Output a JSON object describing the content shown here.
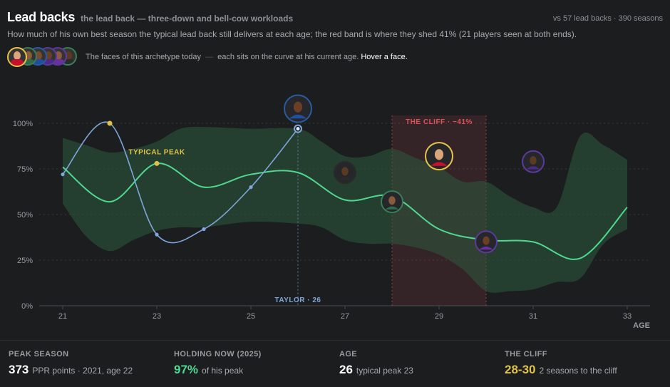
{
  "header": {
    "title": "Lead backs",
    "subtitle": "the lead back — three-down and bell-cow workloads",
    "meta": "vs 57 lead backs · 390 seasons",
    "description": "How much of his own best season the typical lead back still delivers at each age; the red band is where they shed 41% (21 players seen at both ends)."
  },
  "faces": {
    "caption": "The faces of this archetype today",
    "caption_sep": "—",
    "caption_rest": "each sits on the curve at his current age.",
    "hint": "Hover a face.",
    "items": [
      {
        "ring": "#e8c24a",
        "jersey": "#c8102e",
        "skin": "#d9a57b"
      },
      {
        "ring": "#3a7d5a",
        "jersey": "#2e6b4f",
        "skin": "#8a5a3c"
      },
      {
        "ring": "#2c5aa0",
        "jersey": "#1f4fa0",
        "skin": "#7a4a2c"
      },
      {
        "ring": "#5b3a9c",
        "jersey": "#4b2a8c",
        "skin": "#6a3f26"
      },
      {
        "ring": "#5b3a9c",
        "jersey": "#6a2fa0",
        "skin": "#8a5a3c"
      },
      {
        "ring": "#3a7d5a",
        "jersey": "#2a2a2a",
        "skin": "#5a3a22"
      }
    ]
  },
  "chart_data": {
    "type": "line",
    "xlabel": "AGE",
    "x_ticks": [
      21,
      23,
      25,
      27,
      29,
      31,
      33
    ],
    "y_ticks": [
      0,
      25,
      50,
      75,
      100
    ],
    "y_tick_labels": [
      "0%",
      "25%",
      "50%",
      "75%",
      "100%"
    ],
    "xlim": [
      20.5,
      33.5
    ],
    "ylim": [
      0,
      100
    ],
    "colors": {
      "typical": "#4fd88f",
      "band": "#2c5a3e",
      "player": "#7fa6d8",
      "cliff": "#e0525a",
      "peak": "#e0c24a"
    },
    "band": {
      "x": [
        21,
        21.5,
        22,
        22.5,
        23,
        23.5,
        24,
        25,
        26,
        26.5,
        27,
        27.5,
        28,
        28.5,
        29,
        29.5,
        30,
        30.5,
        31,
        31.5,
        32,
        32.5,
        33
      ],
      "upper": [
        92,
        88,
        84,
        86,
        90,
        97,
        98,
        97,
        97,
        90,
        82,
        82,
        86,
        81,
        76,
        68,
        68,
        60,
        54,
        54,
        93,
        88,
        80
      ],
      "lower": [
        56,
        38,
        30,
        36,
        41,
        43,
        43,
        46,
        45,
        43,
        36,
        34,
        34,
        32,
        28,
        20,
        8,
        8,
        9,
        13,
        15,
        34,
        42
      ]
    },
    "series": [
      {
        "key": "typical",
        "x": [
          21,
          22,
          23,
          24,
          25,
          26,
          27,
          28,
          29,
          30,
          31,
          32,
          33
        ],
        "values": [
          76,
          57,
          78,
          65,
          72,
          73,
          58,
          60,
          42,
          36,
          35,
          26,
          54
        ]
      },
      {
        "key": "player",
        "x": [
          21,
          22,
          23,
          24,
          25,
          26
        ],
        "values": [
          72,
          100,
          39,
          42,
          65,
          97
        ]
      }
    ],
    "annotations": {
      "peak_label": "TYPICAL PEAK",
      "peak_age": 23,
      "peak_value": 78,
      "player_peak_age": 22,
      "player_peak_value": 100,
      "player_label": "TAYLOR · 26",
      "player_age": 26,
      "player_value": 97,
      "cliff_label": "THE CLIFF · −41%",
      "cliff_range": [
        28,
        30
      ]
    },
    "player_faces": [
      {
        "age": 26,
        "value": 108,
        "ring": "#2c5aa0",
        "jersey": "#1f4fa0",
        "skin": "#6a3f26"
      },
      {
        "age": 27,
        "value": 73,
        "ring": "#2a2a2a",
        "jersey": "#2a2a2a",
        "skin": "#5a3a22"
      },
      {
        "age": 28,
        "value": 57,
        "ring": "#3a7d5a",
        "jersey": "#2e6b4f",
        "skin": "#8a5a3c"
      },
      {
        "age": 29,
        "value": 82,
        "ring": "#e8c24a",
        "jersey": "#c8102e",
        "skin": "#d9a57b"
      },
      {
        "age": 30,
        "value": 35,
        "ring": "#5b3a9c",
        "jersey": "#6a2fa0",
        "skin": "#6a3f26"
      },
      {
        "age": 31,
        "value": 79,
        "ring": "#5b3a9c",
        "jersey": "#4b2a8c",
        "skin": "#5a3a22"
      }
    ]
  },
  "stats": [
    {
      "label": "PEAK SEASON",
      "value": "373",
      "note": "PPR points · 2021, age 22",
      "color": "#ffffff"
    },
    {
      "label": "HOLDING NOW (2025)",
      "value": "97%",
      "note": "of his peak",
      "color": "#4fd88f"
    },
    {
      "label": "AGE",
      "value": "26",
      "note": "typical peak 23",
      "color": "#ffffff"
    },
    {
      "label": "THE CLIFF",
      "value": "28-30",
      "note": "2 seasons to the cliff",
      "color": "#e0c24a"
    }
  ]
}
